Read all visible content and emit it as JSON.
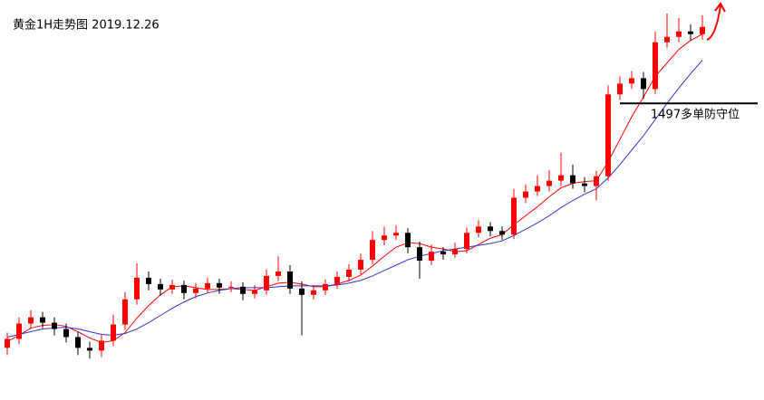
{
  "chart_data": {
    "type": "candlestick",
    "title": "黄金1H走势图  2019.12.26",
    "ylim": [
      1464,
      1508.5
    ],
    "up_color": "#ff0000",
    "down_color": "#000000",
    "open": [
      1469.8,
      1470.8,
      1472.5,
      1473.2,
      1472.6,
      1471.9,
      1471.0,
      1469.8,
      1469.5,
      1470.6,
      1472.4,
      1475.2,
      1477.6,
      1476.9,
      1476.3,
      1476.8,
      1475.9,
      1476.4,
      1477.0,
      1476.5,
      1476.6,
      1475.8,
      1476.2,
      1477.8,
      1478.3,
      1476.4,
      1475.7,
      1476.2,
      1476.9,
      1477.7,
      1478.5,
      1479.6,
      1481.8,
      1482.3,
      1482.6,
      1481.0,
      1479.5,
      1480.5,
      1480.2,
      1480.8,
      1482.6,
      1483.3,
      1482.8,
      1482.4,
      1486.5,
      1487.2,
      1487.8,
      1488.4,
      1489.0,
      1488.1,
      1487.8,
      1488.9,
      1498.0,
      1499.2,
      1499.8,
      1498.6,
      1503.8,
      1504.4,
      1505.0,
      1504.7
    ],
    "high": [
      1471.5,
      1473.2,
      1474.0,
      1473.8,
      1473.2,
      1472.5,
      1471.6,
      1470.5,
      1471.3,
      1473.5,
      1476.0,
      1479.2,
      1478.3,
      1477.5,
      1477.4,
      1477.3,
      1477.0,
      1477.6,
      1477.5,
      1477.2,
      1477.1,
      1476.8,
      1478.5,
      1480.0,
      1479.0,
      1477.2,
      1476.8,
      1477.4,
      1478.3,
      1479.1,
      1480.3,
      1482.8,
      1483.3,
      1483.4,
      1483.1,
      1481.6,
      1481.3,
      1481.0,
      1481.5,
      1483.2,
      1484.0,
      1483.8,
      1483.3,
      1487.5,
      1488.0,
      1489.0,
      1489.6,
      1491.5,
      1490.2,
      1488.8,
      1489.5,
      1499.0,
      1500.0,
      1500.6,
      1500.5,
      1505.0,
      1507.0,
      1506.5,
      1505.8,
      1506.8
    ],
    "low": [
      1469.0,
      1470.2,
      1471.9,
      1472.0,
      1471.2,
      1470.4,
      1469.0,
      1468.6,
      1468.8,
      1470.0,
      1471.8,
      1474.6,
      1476.2,
      1475.6,
      1475.8,
      1475.2,
      1475.3,
      1475.9,
      1475.8,
      1476.0,
      1475.1,
      1475.3,
      1475.7,
      1477.2,
      1475.8,
      1471.2,
      1475.2,
      1475.7,
      1476.4,
      1477.2,
      1478.0,
      1479.1,
      1481.2,
      1481.8,
      1480.3,
      1477.5,
      1479.0,
      1479.6,
      1479.8,
      1480.3,
      1482.1,
      1482.2,
      1481.8,
      1481.9,
      1485.9,
      1486.7,
      1487.2,
      1487.8,
      1487.5,
      1487.1,
      1486.2,
      1488.4,
      1497.4,
      1498.6,
      1497.5,
      1498.0,
      1503.2,
      1503.8,
      1504.0,
      1504.1
    ],
    "close": [
      1470.8,
      1472.5,
      1473.2,
      1472.6,
      1471.9,
      1471.0,
      1469.8,
      1469.5,
      1470.6,
      1472.4,
      1475.2,
      1477.6,
      1476.9,
      1476.3,
      1476.8,
      1475.9,
      1476.4,
      1477.0,
      1476.5,
      1476.6,
      1475.8,
      1476.2,
      1477.8,
      1478.3,
      1476.4,
      1475.7,
      1476.2,
      1476.9,
      1477.7,
      1478.5,
      1479.6,
      1481.8,
      1482.3,
      1482.6,
      1481.0,
      1479.5,
      1480.5,
      1480.2,
      1480.8,
      1482.6,
      1483.3,
      1482.8,
      1482.4,
      1486.5,
      1487.2,
      1487.8,
      1488.4,
      1489.0,
      1488.1,
      1487.8,
      1488.9,
      1498.0,
      1499.2,
      1499.8,
      1498.6,
      1503.8,
      1504.4,
      1505.0,
      1504.7,
      1505.5
    ],
    "lines": [
      {
        "color": "#ff0000",
        "values": [
          1470.5,
          1471.2,
          1472.0,
          1472.3,
          1472.4,
          1472.2,
          1471.6,
          1470.9,
          1470.4,
          1470.6,
          1471.5,
          1473.1,
          1474.5,
          1475.7,
          1476.6,
          1476.7,
          1476.5,
          1476.3,
          1476.3,
          1476.4,
          1476.3,
          1476.2,
          1476.6,
          1477.0,
          1477.1,
          1476.9,
          1476.6,
          1476.6,
          1476.9,
          1477.3,
          1477.9,
          1478.9,
          1480.0,
          1481.0,
          1481.5,
          1481.4,
          1481.0,
          1480.8,
          1480.5,
          1480.6,
          1481.3,
          1482.0,
          1482.4,
          1483.5,
          1484.5,
          1485.5,
          1486.6,
          1487.6,
          1488.1,
          1488.3,
          1488.4,
          1490.5,
          1493.0,
          1495.5,
          1497.7,
          1500.0,
          1501.5,
          1503.0,
          1504.0,
          1504.7
        ]
      },
      {
        "color": "#3333cc",
        "values": [
          1471.0,
          1471.3,
          1471.6,
          1471.9,
          1472.0,
          1472.1,
          1471.9,
          1471.6,
          1471.3,
          1471.2,
          1471.4,
          1471.9,
          1472.6,
          1473.4,
          1474.2,
          1474.9,
          1475.5,
          1475.9,
          1476.2,
          1476.4,
          1476.5,
          1476.5,
          1476.5,
          1476.6,
          1476.7,
          1476.7,
          1476.7,
          1476.7,
          1476.8,
          1477.0,
          1477.3,
          1477.8,
          1478.4,
          1479.0,
          1479.6,
          1480.0,
          1480.3,
          1480.6,
          1480.8,
          1481.0,
          1481.2,
          1481.4,
          1481.7,
          1482.3,
          1483.0,
          1483.7,
          1484.5,
          1485.4,
          1486.2,
          1486.9,
          1487.5,
          1488.7,
          1490.2,
          1491.8,
          1493.4,
          1495.2,
          1497.0,
          1498.7,
          1500.3,
          1501.8
        ]
      }
    ],
    "hline": {
      "value": 1497,
      "label": "1497多单防守位",
      "color": "#000000"
    }
  }
}
